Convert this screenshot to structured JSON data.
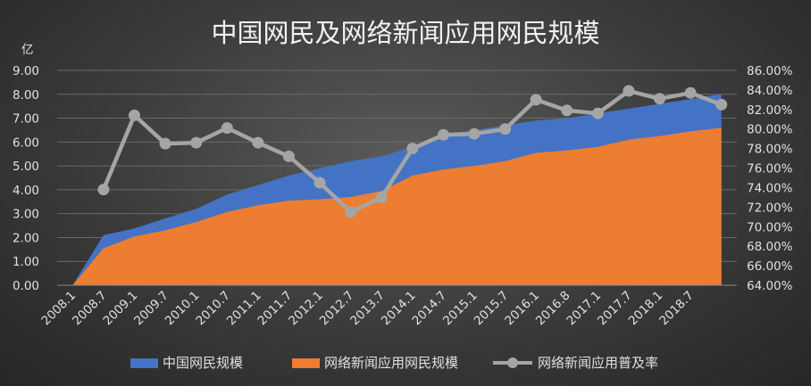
{
  "chart_data": {
    "type": "area+line",
    "title": "中国网民及网络新闻应用网民规模",
    "ylabel_left": "亿",
    "categories": [
      "2008.1",
      "2008.7",
      "2009.1",
      "2009.7",
      "2010.1",
      "2010.7",
      "2011.1",
      "2011.7",
      "2012.1",
      "2012.7",
      "2013.7",
      "2014.1",
      "2014.7",
      "2015.1",
      "2015.7",
      "2016.1",
      "2016.8",
      "2017.1",
      "2017.7",
      "2018.1",
      "2018.7",
      ""
    ],
    "ylim_left": [
      0,
      9
    ],
    "yticks_left": [
      "0.00",
      "1.00",
      "2.00",
      "3.00",
      "4.00",
      "5.00",
      "6.00",
      "7.00",
      "8.00",
      "9.00"
    ],
    "ylim_right": [
      0.64,
      0.86
    ],
    "yticks_right": [
      "64.00%",
      "66.00%",
      "68.00%",
      "70.00%",
      "72.00%",
      "74.00%",
      "76.00%",
      "78.00%",
      "80.00%",
      "82.00%",
      "84.00%",
      "86.00%"
    ],
    "series": [
      {
        "name": "中国网民规模",
        "kind": "area",
        "color": "#4472c4",
        "values": [
          0,
          2.1,
          2.38,
          2.8,
          3.2,
          3.8,
          4.2,
          4.6,
          4.9,
          5.2,
          5.4,
          5.8,
          6.3,
          6.5,
          6.7,
          6.9,
          7.0,
          7.2,
          7.4,
          7.6,
          7.8,
          8.02
        ]
      },
      {
        "name": "网络新闻应用网民规模",
        "kind": "area",
        "color": "#ed7d31",
        "values": [
          0,
          1.55,
          2.05,
          2.3,
          2.65,
          3.07,
          3.35,
          3.55,
          3.6,
          3.7,
          3.95,
          4.6,
          4.85,
          5.0,
          5.2,
          5.55,
          5.65,
          5.8,
          6.1,
          6.25,
          6.45,
          6.6
        ]
      },
      {
        "name": "网络新闻应用普及率",
        "kind": "line",
        "color": "#a5a5a5",
        "axis": "right",
        "values": [
          null,
          0.738,
          0.814,
          0.785,
          0.786,
          0.801,
          0.786,
          0.772,
          0.745,
          0.715,
          0.73,
          0.78,
          0.794,
          0.795,
          0.8,
          0.83,
          0.819,
          0.816,
          0.839,
          0.831,
          0.837,
          0.825
        ]
      }
    ]
  },
  "colors": {
    "area_total": "#4472c4",
    "area_news": "#ed7d31",
    "line_rate": "#a5a5a5"
  }
}
